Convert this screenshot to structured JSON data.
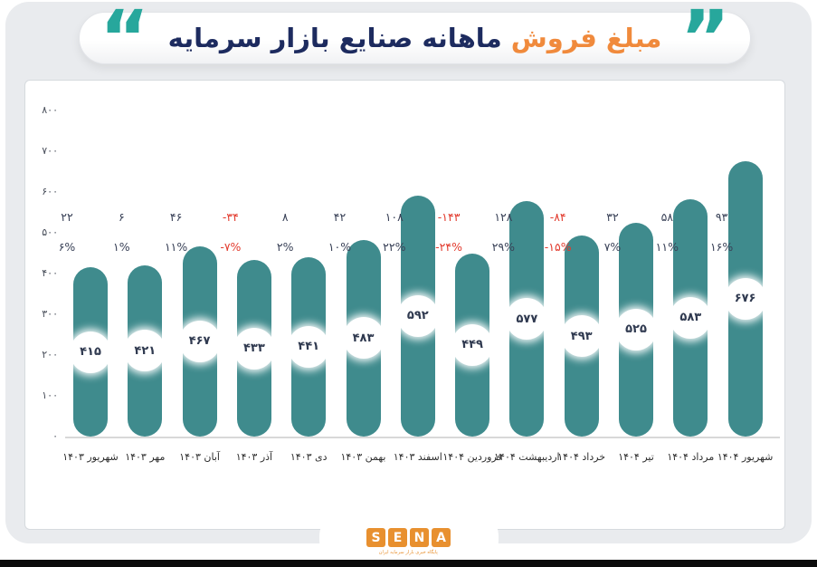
{
  "title": {
    "highlight": "مبلغ فروش",
    "rest": "ماهانه صنایع بازار سرمایه",
    "left_quote": "“",
    "right_quote": "”"
  },
  "colors": {
    "bar": "#3f8b8d",
    "negative": "#e23b2e",
    "positive_text": "#3a4258",
    "title_highlight": "#f08a3c",
    "title_rest": "#1d2b5f",
    "quote_teal": "#27a79c",
    "logo_orange": "#e8902f",
    "background": "#e9ebee"
  },
  "chart_data": {
    "type": "bar",
    "title": "مبلغ فروش ماهانه صنایع بازار سرمایه",
    "xlabel": "",
    "ylabel": "",
    "ylim": [
      0,
      800
    ],
    "grid": false,
    "legend": false,
    "y_ticks": [
      {
        "label": "۸۰۰",
        "value": 800
      },
      {
        "label": "۷۰۰",
        "value": 700
      },
      {
        "label": "۶۰۰",
        "value": 600
      },
      {
        "label": "۵۰۰",
        "value": 500
      },
      {
        "label": "۴۰۰",
        "value": 400
      },
      {
        "label": "۳۰۰",
        "value": 300
      },
      {
        "label": "۲۰۰",
        "value": 200
      },
      {
        "label": "۱۰۰",
        "value": 100
      },
      {
        "label": "۰",
        "value": 0
      }
    ],
    "categories": [
      "شهریور ۱۴۰۳",
      "مهر ۱۴۰۳",
      "آبان ۱۴۰۳",
      "آذر ۱۴۰۳",
      "دی ۱۴۰۳",
      "بهمن ۱۴۰۳",
      "اسفند ۱۴۰۳",
      "فروردین ۱۴۰۴",
      "اردیبهشت ۱۴۰۴",
      "خرداد ۱۴۰۴",
      "تیر ۱۴۰۴",
      "مرداد ۱۴۰۴",
      "شهریور ۱۴۰۴"
    ],
    "values": [
      415,
      421,
      467,
      433,
      441,
      483,
      592,
      449,
      577,
      493,
      525,
      583,
      676
    ],
    "value_labels": [
      "۴۱۵",
      "۴۲۱",
      "۴۶۷",
      "۴۳۳",
      "۴۴۱",
      "۴۸۳",
      "۵۹۲",
      "۴۴۹",
      "۵۷۷",
      "۴۹۳",
      "۵۲۵",
      "۵۸۳",
      "۶۷۶"
    ],
    "change_values": [
      22,
      6,
      46,
      -34,
      8,
      42,
      108,
      -143,
      128,
      -84,
      32,
      58,
      93
    ],
    "change_labels": [
      "۲۲",
      "۶",
      "۴۶",
      "-۳۴",
      "۸",
      "۴۲",
      "۱۰۸",
      "-۱۴۳",
      "۱۲۸",
      "-۸۴",
      "۳۲",
      "۵۸",
      "۹۳"
    ],
    "percent_values": [
      6,
      1,
      11,
      -7,
      2,
      10,
      22,
      -24,
      29,
      -15,
      7,
      11,
      16
    ],
    "percent_labels": [
      "۶%",
      "۱%",
      "۱۱%",
      "-۷%",
      "۲%",
      "۱۰%",
      "۲۲%",
      "-۲۴%",
      "۲۹%",
      "-۱۵%",
      "۷%",
      "۱۱%",
      "۱۶%"
    ]
  },
  "logo": {
    "letters": [
      "S",
      "E",
      "N",
      "A"
    ],
    "tagline": "پایگاه خبری بازار سرمایه ایران"
  }
}
